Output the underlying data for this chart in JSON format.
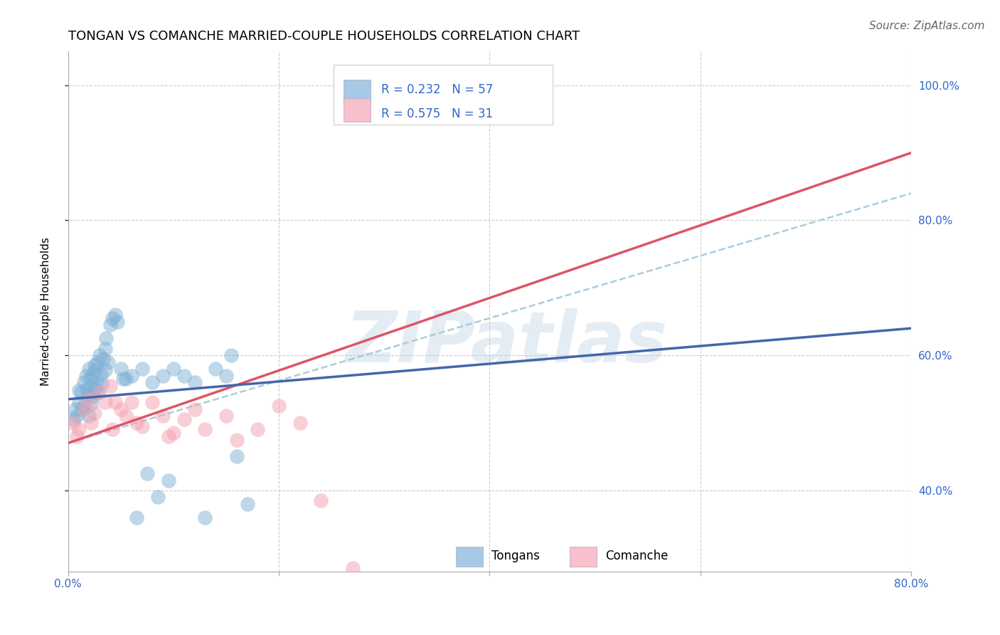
{
  "title": "TONGAN VS COMANCHE MARRIED-COUPLE HOUSEHOLDS CORRELATION CHART",
  "source": "Source: ZipAtlas.com",
  "ylabel": "Married-couple Households",
  "xlim": [
    0.0,
    0.8
  ],
  "ylim": [
    0.28,
    1.05
  ],
  "y_ticks_right": [
    0.4,
    0.6,
    0.8,
    1.0
  ],
  "y_tick_labels_right": [
    "40.0%",
    "60.0%",
    "80.0%",
    "100.0%"
  ],
  "legend_r_blue": "R = 0.232",
  "legend_n_blue": "N = 57",
  "legend_r_pink": "R = 0.575",
  "legend_n_pink": "N = 31",
  "legend_label_blue": "Tongans",
  "legend_label_pink": "Comanche",
  "blue_color": "#7EB0D5",
  "pink_color": "#F4A0B0",
  "blue_fill_color": "#A8C8E8",
  "pink_fill_color": "#F8C0CC",
  "blue_line_color": "#4466AA",
  "pink_line_color": "#DD5566",
  "dashed_line_color": "#AACCDD",
  "watermark_text": "ZIPatlas",
  "title_fontsize": 13,
  "source_fontsize": 11,
  "axis_label_fontsize": 11,
  "tick_fontsize": 11,
  "legend_fontsize": 12,
  "tongan_x": [
    0.005,
    0.007,
    0.008,
    0.01,
    0.01,
    0.012,
    0.013,
    0.015,
    0.015,
    0.017,
    0.018,
    0.02,
    0.02,
    0.02,
    0.021,
    0.022,
    0.022,
    0.023,
    0.024,
    0.025,
    0.025,
    0.026,
    0.027,
    0.028,
    0.028,
    0.03,
    0.031,
    0.032,
    0.033,
    0.035,
    0.035,
    0.036,
    0.038,
    0.04,
    0.042,
    0.045,
    0.047,
    0.05,
    0.052,
    0.055,
    0.06,
    0.065,
    0.07,
    0.075,
    0.08,
    0.085,
    0.09,
    0.095,
    0.1,
    0.11,
    0.12,
    0.13,
    0.14,
    0.15,
    0.155,
    0.16,
    0.17
  ],
  "tongan_y": [
    0.505,
    0.52,
    0.51,
    0.53,
    0.548,
    0.545,
    0.52,
    0.56,
    0.525,
    0.57,
    0.55,
    0.58,
    0.542,
    0.51,
    0.565,
    0.555,
    0.528,
    0.572,
    0.54,
    0.585,
    0.552,
    0.578,
    0.56,
    0.59,
    0.545,
    0.6,
    0.572,
    0.558,
    0.595,
    0.61,
    0.578,
    0.625,
    0.59,
    0.645,
    0.655,
    0.66,
    0.65,
    0.58,
    0.565,
    0.565,
    0.57,
    0.36,
    0.58,
    0.425,
    0.56,
    0.39,
    0.57,
    0.415,
    0.58,
    0.57,
    0.56,
    0.36,
    0.58,
    0.57,
    0.6,
    0.45,
    0.38
  ],
  "comanche_x": [
    0.005,
    0.008,
    0.01,
    0.015,
    0.02,
    0.022,
    0.025,
    0.03,
    0.035,
    0.04,
    0.042,
    0.045,
    0.05,
    0.055,
    0.06,
    0.065,
    0.07,
    0.08,
    0.09,
    0.095,
    0.1,
    0.11,
    0.12,
    0.13,
    0.15,
    0.16,
    0.18,
    0.2,
    0.22,
    0.24,
    0.27
  ],
  "comanche_y": [
    0.5,
    0.48,
    0.49,
    0.52,
    0.535,
    0.5,
    0.515,
    0.545,
    0.53,
    0.555,
    0.49,
    0.53,
    0.52,
    0.51,
    0.53,
    0.5,
    0.495,
    0.53,
    0.51,
    0.48,
    0.485,
    0.505,
    0.52,
    0.49,
    0.51,
    0.475,
    0.49,
    0.525,
    0.5,
    0.385,
    0.285
  ],
  "blue_line_x": [
    0.0,
    0.8
  ],
  "blue_line_y": [
    0.535,
    0.64
  ],
  "pink_line_x": [
    0.0,
    0.8
  ],
  "pink_line_y": [
    0.47,
    0.9
  ],
  "dashed_line_x": [
    0.0,
    0.8
  ],
  "dashed_line_y": [
    0.47,
    0.84
  ]
}
